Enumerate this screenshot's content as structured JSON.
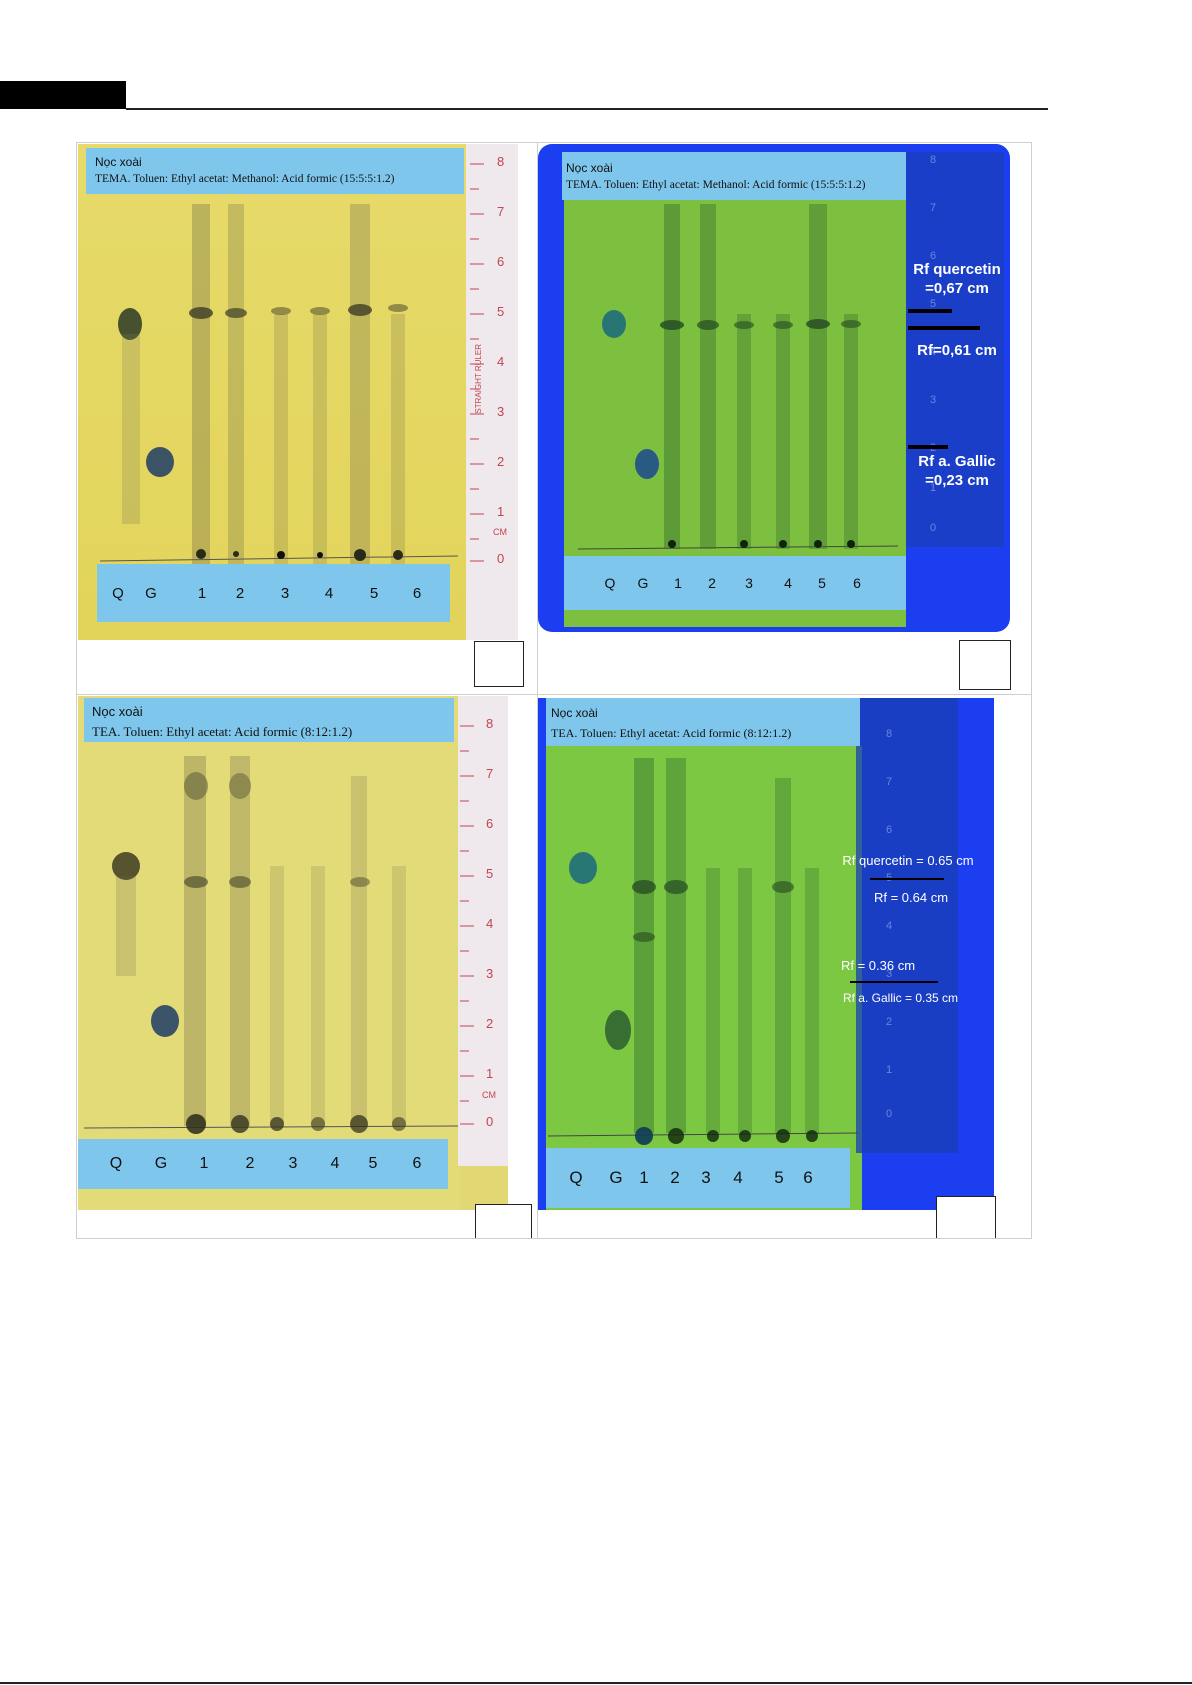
{
  "panels": [
    {
      "id": "a",
      "title": "Nọc xoài",
      "subtitle": "TEMA. Toluen: Ethyl acetat: Methanol: Acid formic (15:5:5:1.2)",
      "lanes": [
        "Q",
        "G",
        "1",
        "2",
        "3",
        "4",
        "5",
        "6"
      ],
      "ruler_numbers": [
        "8",
        "7",
        "6",
        "5",
        "4",
        "3",
        "2",
        "1",
        "0",
        "CM"
      ],
      "ruler_brand": "STRAIGHT RULER",
      "background": "#e8dc63",
      "light": "visible"
    },
    {
      "id": "b",
      "title": "Nọc xoài",
      "subtitle": "TEMA. Toluen: Ethyl acetat: Methanol: Acid formic (15:5:5:1.2)",
      "lanes": [
        "Q",
        "G",
        "1",
        "2",
        "3",
        "4",
        "5",
        "6"
      ],
      "ruler_numbers": [
        "8",
        "7",
        "6",
        "5",
        "4",
        "3",
        "2",
        "1",
        "0"
      ],
      "rf_annotations": [
        "Rf quercetin\n=0,67 cm",
        "Rf=0,61 cm",
        "Rf a. Gallic\n=0,23 cm"
      ],
      "background": "#7dbf3e",
      "light": "UV"
    },
    {
      "id": "c",
      "title": "Nọc xoài",
      "subtitle": "TEA. Toluen: Ethyl acetat: Acid formic (8:12:1.2)",
      "lanes": [
        "Q",
        "G",
        "1",
        "2",
        "3",
        "4",
        "5",
        "6"
      ],
      "ruler_numbers": [
        "8",
        "7",
        "6",
        "5",
        "4",
        "3",
        "2",
        "1",
        "0",
        "CM"
      ],
      "background": "#e2d873",
      "light": "visible"
    },
    {
      "id": "d",
      "title": "Nọc xoài",
      "subtitle": "TEA. Toluen: Ethyl acetat: Acid formic (8:12:1.2)",
      "lanes": [
        "Q",
        "G",
        "1",
        "2",
        "3",
        "4",
        "5",
        "6"
      ],
      "ruler_numbers": [
        "8",
        "7",
        "6",
        "5",
        "4",
        "3",
        "2",
        "1",
        "0"
      ],
      "rf_annotations": [
        "Rf quercetin = 0.65 cm",
        "Rf = 0.64 cm",
        "Rf = 0.36 cm",
        "Rf a. Gallic = 0.35 cm"
      ],
      "background": "#7cc843",
      "light": "UV"
    }
  ]
}
